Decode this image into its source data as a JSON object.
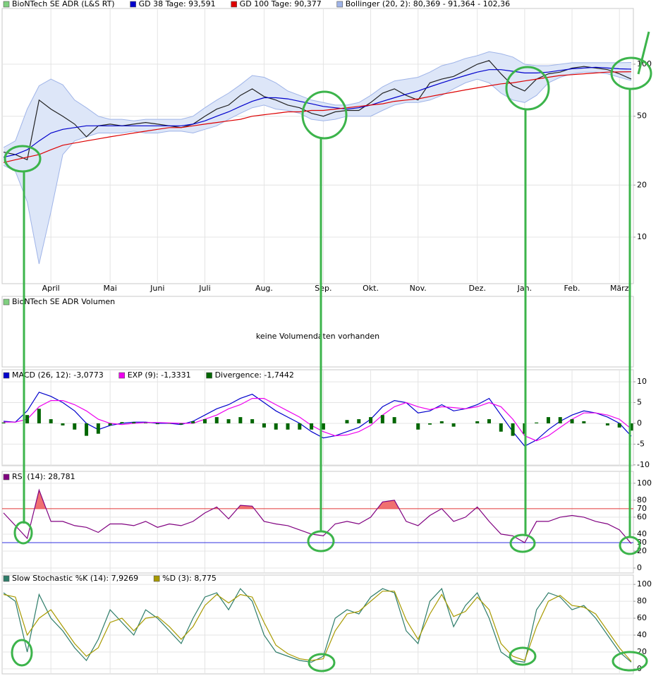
{
  "chart_data": [
    {
      "type": "line",
      "log": true,
      "grid": true,
      "ylim": [
        5.38,
        210
      ],
      "yticks": [
        10,
        20,
        50,
        100
      ],
      "categories": [
        null,
        null,
        null,
        null,
        "April",
        null,
        null,
        null,
        null,
        "Mai",
        null,
        null,
        null,
        "Juni",
        null,
        null,
        null,
        "Juli",
        null,
        null,
        null,
        null,
        "Aug.",
        null,
        null,
        null,
        null,
        "Sep.",
        null,
        null,
        null,
        "Okt.",
        null,
        null,
        null,
        "Nov.",
        null,
        null,
        null,
        null,
        "Dez.",
        null,
        null,
        null,
        "Jan.",
        null,
        null,
        null,
        "Feb.",
        null,
        null,
        null,
        "März",
        null
      ],
      "series": [
        {
          "name": "BioNTech SE ADR (L&S RT)",
          "color": "#222222",
          "swatch": "#7fcf7f",
          "values": [
            31,
            30,
            28,
            62,
            55,
            50,
            45,
            38,
            44,
            45,
            44,
            45,
            46,
            45,
            44,
            43,
            45,
            50,
            55,
            58,
            66,
            72,
            65,
            62,
            58,
            56,
            52,
            50,
            53,
            54,
            54,
            60,
            68,
            72,
            66,
            62,
            78,
            82,
            85,
            92,
            100,
            105,
            88,
            75,
            70,
            82,
            88,
            90,
            95,
            97,
            95,
            93,
            88,
            82
          ]
        },
        {
          "name": "GD 38 Tage: 93,591",
          "color": "#0000cc",
          "values": [
            29,
            30,
            32,
            36,
            40,
            42,
            43,
            44,
            44,
            44,
            44,
            44,
            44,
            44,
            44,
            44,
            45,
            47,
            50,
            53,
            57,
            61,
            64,
            64,
            63,
            61,
            59,
            57,
            56,
            55,
            56,
            58,
            61,
            64,
            67,
            70,
            74,
            78,
            82,
            86,
            90,
            93,
            93,
            91,
            89,
            89,
            90,
            92,
            94,
            95,
            96,
            95,
            94,
            93.591
          ]
        },
        {
          "name": "GD 100 Tage: 90,377",
          "color": "#dd0000",
          "values": [
            27,
            28,
            29,
            30,
            32,
            34,
            35,
            36,
            37,
            38,
            39,
            40,
            41,
            42,
            43,
            43,
            44,
            45,
            46,
            47,
            48,
            50,
            51,
            52,
            53,
            53,
            54,
            54,
            55,
            56,
            57,
            58,
            59,
            61,
            62,
            63,
            65,
            67,
            69,
            71,
            73,
            75,
            77,
            78,
            80,
            82,
            84,
            86,
            87,
            88,
            89,
            90,
            90.2,
            90.377
          ]
        },
        {
          "name": "Bollinger (20, 2): 80,369 - 91,364 - 102,36",
          "color": "#9fb4e8",
          "fill": "#dde6f8",
          "lower": [
            26,
            24,
            16,
            7,
            14,
            30,
            36,
            38,
            40,
            40,
            40,
            41,
            40,
            40,
            41,
            41,
            40,
            42,
            44,
            48,
            52,
            56,
            58,
            55,
            54,
            52,
            48,
            47,
            48,
            50,
            50,
            50,
            54,
            58,
            60,
            60,
            62,
            66,
            72,
            78,
            82,
            78,
            68,
            62,
            60,
            66,
            78,
            84,
            88,
            90,
            90,
            88,
            84,
            80.369
          ],
          "upper": [
            33,
            36,
            55,
            75,
            82,
            76,
            62,
            56,
            50,
            48,
            48,
            47,
            48,
            48,
            48,
            48,
            50,
            56,
            62,
            68,
            76,
            86,
            84,
            78,
            70,
            66,
            62,
            60,
            58,
            58,
            60,
            66,
            74,
            80,
            82,
            84,
            90,
            98,
            102,
            108,
            112,
            118,
            115,
            110,
            100,
            98,
            98,
            100,
            102,
            102,
            102,
            102,
            102,
            102.36
          ]
        }
      ]
    },
    {
      "type": "empty",
      "title": "BioNTech SE ADR Volumen",
      "swatch": "#7fcf7f",
      "message": "keine Volumendaten vorhanden"
    },
    {
      "type": "line",
      "grid": true,
      "ylim": [
        -10.2,
        12.9
      ],
      "yticks": [
        -10,
        -5,
        0,
        5,
        10
      ],
      "series": [
        {
          "name": "MACD (26, 12): -3,0773",
          "color": "#0000cc",
          "values": [
            0.5,
            0.3,
            3,
            7.5,
            6.5,
            5,
            3,
            0,
            -1.5,
            -0.5,
            0,
            0.3,
            0.3,
            0,
            0,
            -0.3,
            0.5,
            2,
            3.5,
            4.5,
            6,
            7,
            5,
            3,
            1.5,
            0,
            -2,
            -3.5,
            -3,
            -2,
            -1,
            1,
            4,
            5.5,
            5,
            2.5,
            3,
            4.5,
            3,
            3.5,
            4.5,
            6,
            2,
            -2,
            -5.5,
            -4,
            -1.5,
            0.5,
            2,
            3,
            2.5,
            1.5,
            0,
            -3.0773
          ]
        },
        {
          "name": "EXP (9): -1,3331",
          "color": "#ee00ee",
          "values": [
            0.3,
            0.3,
            1,
            4,
            5.5,
            5.5,
            4.5,
            3,
            1,
            0,
            -0.3,
            0,
            0.2,
            0.2,
            0.1,
            0,
            0,
            1,
            2,
            3.5,
            4.5,
            6,
            6,
            4.5,
            3,
            1.5,
            -0.5,
            -2,
            -3,
            -2.8,
            -2,
            -0.5,
            2,
            4,
            5,
            4,
            3.3,
            4,
            3.8,
            3.5,
            4,
            5,
            4,
            1,
            -3,
            -4.2,
            -3,
            -1,
            1,
            2.5,
            2.5,
            2,
            1,
            -1.3331
          ]
        },
        {
          "name": "Divergence: -1,7442",
          "color": "#006600",
          "style": "bar",
          "values": [
            0.2,
            0,
            2,
            3.5,
            1,
            -0.5,
            -1.5,
            -3,
            -2.5,
            -0.5,
            0.3,
            0.3,
            0.1,
            -0.2,
            -0.1,
            -0.3,
            0.5,
            1,
            1.5,
            1,
            1.5,
            1,
            -1,
            -1.5,
            -1.5,
            -1.5,
            -1.5,
            -1.5,
            0,
            0.8,
            1,
            1.5,
            2,
            1.5,
            0,
            -1.5,
            -0.3,
            0.5,
            -0.8,
            0,
            0.5,
            1,
            -2,
            -3,
            -2.5,
            0.2,
            1.5,
            1.5,
            1,
            0.5,
            0,
            -0.5,
            -1,
            -1.7442
          ]
        }
      ]
    },
    {
      "type": "line",
      "grid": true,
      "ylim": [
        -5.8,
        114
      ],
      "yticks": [
        0,
        20,
        40,
        60,
        80,
        100
      ],
      "hlines": [
        {
          "value": 70,
          "color": "#e03030",
          "fill": "#f07070"
        },
        {
          "value": 30,
          "color": "#3030e0"
        }
      ],
      "series": [
        {
          "name": "RSI (14): 28,781",
          "color": "#800080",
          "values": [
            65,
            50,
            35,
            92,
            55,
            55,
            50,
            48,
            42,
            52,
            52,
            50,
            55,
            48,
            52,
            50,
            55,
            65,
            72,
            58,
            74,
            73,
            55,
            52,
            50,
            45,
            40,
            38,
            52,
            55,
            52,
            60,
            78,
            80,
            55,
            50,
            62,
            70,
            55,
            60,
            72,
            55,
            40,
            38,
            30,
            55,
            55,
            60,
            62,
            60,
            55,
            52,
            45,
            28.781
          ]
        }
      ]
    },
    {
      "type": "line",
      "grid": true,
      "ylim": [
        -5.9,
        111
      ],
      "yticks": [
        0,
        20,
        40,
        60,
        80,
        100
      ],
      "series": [
        {
          "name": "Slow Stochastic %K (14): 7,9269",
          "color": "#2e7d6a",
          "values": [
            90,
            80,
            20,
            88,
            60,
            45,
            25,
            10,
            35,
            70,
            55,
            40,
            70,
            60,
            45,
            30,
            60,
            85,
            90,
            70,
            95,
            80,
            40,
            20,
            15,
            10,
            8,
            15,
            60,
            70,
            65,
            85,
            95,
            90,
            45,
            30,
            80,
            95,
            50,
            75,
            90,
            60,
            20,
            10,
            8,
            70,
            90,
            85,
            70,
            75,
            60,
            40,
            20,
            7.9269
          ]
        },
        {
          "name": "%D (3): 8,775",
          "color": "#a89a00",
          "values": [
            88,
            85,
            40,
            60,
            70,
            50,
            30,
            15,
            25,
            55,
            60,
            45,
            60,
            62,
            50,
            35,
            50,
            75,
            88,
            78,
            88,
            85,
            55,
            28,
            18,
            12,
            10,
            12,
            45,
            65,
            68,
            80,
            92,
            92,
            58,
            35,
            65,
            88,
            62,
            68,
            85,
            70,
            30,
            15,
            10,
            50,
            80,
            87,
            75,
            73,
            65,
            45,
            25,
            8.775
          ]
        }
      ]
    }
  ]
}
